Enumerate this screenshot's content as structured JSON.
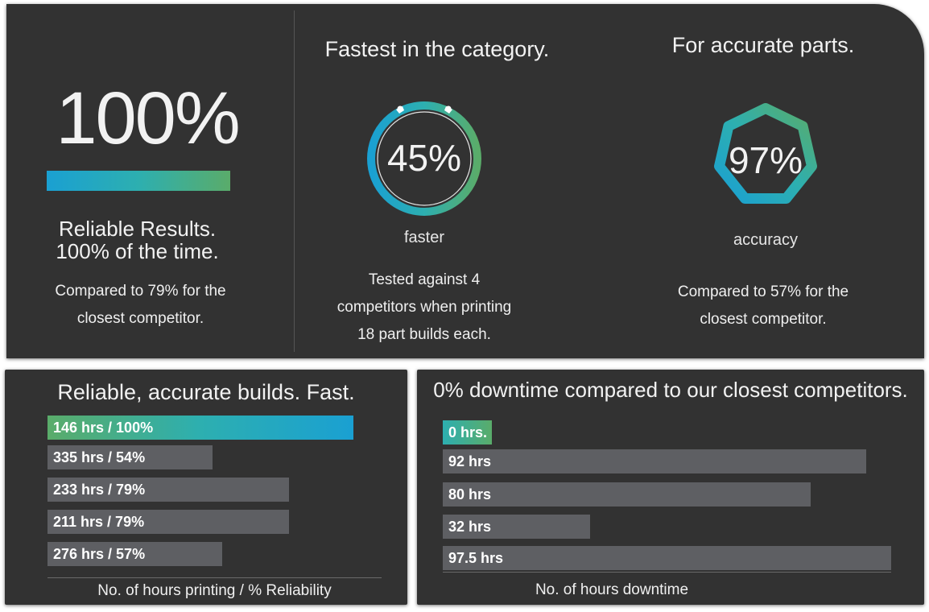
{
  "colors": {
    "panel": "#323232",
    "bar_gray": "#5e5f63",
    "gradient_blue": "#1aa0d2",
    "gradient_teal": "#2dafb0",
    "gradient_green": "#5aac6a"
  },
  "reliability": {
    "headline": "100%",
    "caption_line1": "Reliable Results.",
    "caption_line2": "100% of the time.",
    "compare_line1": "Compared to 79% for the",
    "compare_line2": "closest competitor."
  },
  "speed": {
    "title": "Fastest in the category.",
    "value": "45%",
    "label": "faster",
    "note_line1": "Tested against 4",
    "note_line2": "competitors when printing",
    "note_line3": "18 part builds each.",
    "icon": "stopwatch-icon"
  },
  "accuracy": {
    "title": "For accurate parts.",
    "value": "97%",
    "label": "accuracy",
    "compare_line1": "Compared to 57% for the",
    "compare_line2": "closest competitor.",
    "icon": "heptagon-icon"
  },
  "chart_data": [
    {
      "type": "bar",
      "orientation": "horizontal",
      "title": "Reliable, accurate builds. Fast.",
      "xlabel": "No. of hours printing / % Reliability",
      "categories": [
        "146 hrs / 100%",
        "335 hrs / 54%",
        "233 hrs / 79%",
        "211 hrs / 79%",
        "276 hrs / 57%"
      ],
      "values": [
        100,
        54,
        79,
        79,
        57
      ],
      "xlim": [
        0,
        100
      ],
      "highlight_index": 0
    },
    {
      "type": "bar",
      "orientation": "horizontal",
      "title": "0% downtime compared to our closest competitors.",
      "xlabel": "No. of hours downtime",
      "categories": [
        "0 hrs.",
        "92 hrs",
        "80 hrs",
        "32 hrs",
        "97.5 hrs"
      ],
      "values": [
        0,
        92,
        80,
        32,
        97.5
      ],
      "xlim": [
        0,
        97.5
      ],
      "highlight_index": 0
    }
  ]
}
